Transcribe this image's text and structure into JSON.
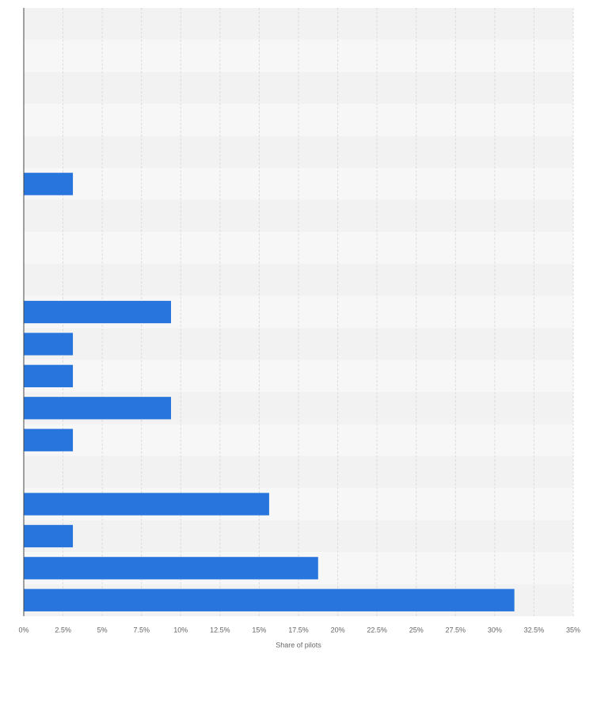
{
  "chart_data": {
    "type": "hbar",
    "categories": [
      null,
      null,
      null,
      null,
      null,
      null,
      null,
      null,
      null,
      null,
      null,
      null,
      null,
      null,
      null,
      null,
      null,
      null,
      null
    ],
    "values": [
      0,
      0,
      0,
      0,
      0,
      3.13,
      0,
      0,
      0,
      9.38,
      3.13,
      3.13,
      9.38,
      3.13,
      0,
      15.63,
      3.13,
      18.75,
      31.25
    ],
    "color": "#2876dd",
    "xlabel": "Share of pilots",
    "xlim": [
      0,
      35
    ],
    "xticks": [
      {
        "value": 0,
        "label": "0%"
      },
      {
        "value": 2.5,
        "label": "2.5%"
      },
      {
        "value": 5,
        "label": "5%"
      },
      {
        "value": 7.5,
        "label": "7.5%"
      },
      {
        "value": 10,
        "label": "10%"
      },
      {
        "value": 12.5,
        "label": "12.5%"
      },
      {
        "value": 15,
        "label": "15%"
      },
      {
        "value": 17.5,
        "label": "17.5%"
      },
      {
        "value": 20,
        "label": "20%"
      },
      {
        "value": 22.5,
        "label": "22.5%"
      },
      {
        "value": 25,
        "label": "25%"
      },
      {
        "value": 27.5,
        "label": "27.5%"
      },
      {
        "value": 30,
        "label": "30%"
      },
      {
        "value": 32.5,
        "label": "32.5%"
      },
      {
        "value": 35,
        "label": "35%"
      }
    ],
    "grid": true
  }
}
